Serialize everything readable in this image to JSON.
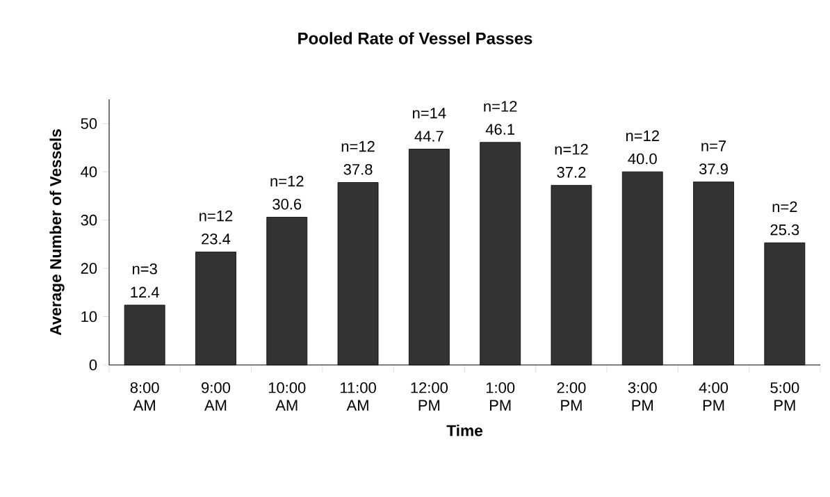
{
  "chart_data": {
    "type": "bar",
    "title": "Pooled Rate of Vessel Passes",
    "xlabel": "Time",
    "ylabel": "Average Number of Vessels",
    "categories": [
      "8:00 AM",
      "9:00 AM",
      "10:00 AM",
      "11:00 AM",
      "12:00 PM",
      "1:00 PM",
      "2:00 PM",
      "3:00 PM",
      "4:00 PM",
      "5:00 PM"
    ],
    "values": [
      12.4,
      23.4,
      30.6,
      37.8,
      44.7,
      46.1,
      37.2,
      40.0,
      37.9,
      25.3
    ],
    "value_labels": [
      "12.4",
      "23.4",
      "30.6",
      "37.8",
      "44.7",
      "46.1",
      "37.2",
      "40.0",
      "37.9",
      "25.3"
    ],
    "color": "#333333",
    "ylim": [
      0,
      55
    ],
    "yticks": [
      0,
      10,
      20,
      30,
      40,
      50
    ],
    "grid": false,
    "annotations": [
      {
        "text": "n=3",
        "x": "8:00 AM",
        "y": 12.4
      },
      {
        "text": "n=12",
        "x": "9:00 AM",
        "y": 23.4
      },
      {
        "text": "n=12",
        "x": "10:00 AM",
        "y": 30.6
      },
      {
        "text": "n=12",
        "x": "11:00 AM",
        "y": 37.8
      },
      {
        "text": "n=14",
        "x": "12:00 PM",
        "y": 44.7
      },
      {
        "text": "n=12",
        "x": "1:00 PM",
        "y": 46.1
      },
      {
        "text": "n=12",
        "x": "2:00 PM",
        "y": 37.2
      },
      {
        "text": "n=12",
        "x": "3:00 PM",
        "y": 40.0
      },
      {
        "text": "n=7",
        "x": "4:00 PM",
        "y": 37.9
      },
      {
        "text": "n=2",
        "x": "5:00 PM",
        "y": 25.3
      }
    ]
  }
}
